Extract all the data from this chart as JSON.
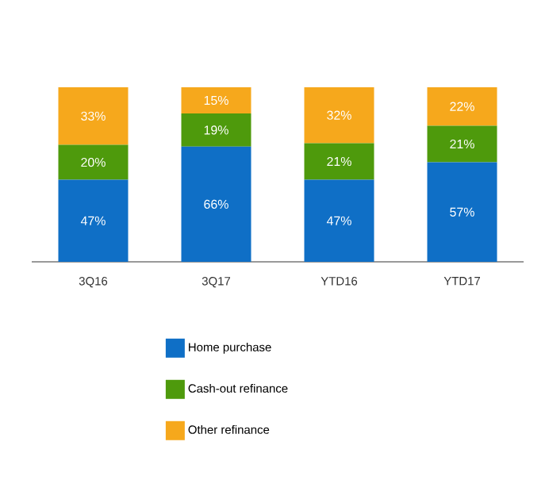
{
  "chart_data": {
    "type": "bar",
    "stacked": true,
    "categories": [
      "3Q16",
      "3Q17",
      "YTD16",
      "YTD17"
    ],
    "series": [
      {
        "name": "Home purchase",
        "color": "#0f6fc6",
        "values": [
          47,
          66,
          47,
          57
        ],
        "value_labels": [
          "47%",
          "66%",
          "47%",
          "57%"
        ]
      },
      {
        "name": "Cash-out refinance",
        "color": "#4e9a0c",
        "values": [
          20,
          19,
          21,
          21
        ],
        "value_labels": [
          "20%",
          "19%",
          "21%",
          "21%"
        ]
      },
      {
        "name": "Other refinance",
        "color": "#f6a81c",
        "values": [
          33,
          15,
          32,
          22
        ],
        "value_labels": [
          "33%",
          "15%",
          "32%",
          "22%"
        ]
      }
    ],
    "legend": "bottom"
  }
}
